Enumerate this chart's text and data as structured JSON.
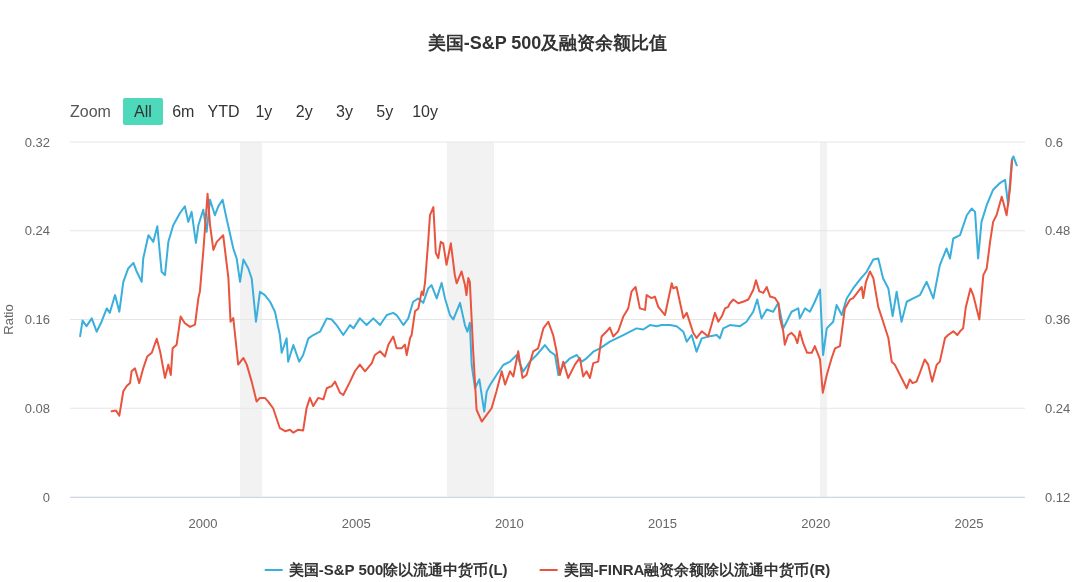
{
  "chart_data": {
    "type": "line",
    "title": "美国-S&P 500及融资余额比值",
    "ylabel": "Ratio",
    "annotations": [
      "Zoom",
      "All",
      "6m",
      "YTD",
      "1y",
      "2y",
      "3y",
      "5y",
      "10y"
    ],
    "xlim": [
      1995.66,
      2026.83
    ],
    "xticks": [
      2000,
      2005,
      2010,
      2015,
      2020,
      2025
    ],
    "ylim": [
      0,
      0.32
    ],
    "yticks": [
      0,
      0.08,
      0.16,
      0.24,
      0.32
    ],
    "y2lim": [
      0.12,
      0.6
    ],
    "y2ticks": [
      0.12,
      0.24,
      0.36,
      0.48,
      0.6
    ],
    "grid": "y",
    "legend": "bottom",
    "bands": [
      {
        "axis": "x",
        "from": 2001.21,
        "to": 2001.93,
        "color": "#f2f2f2"
      },
      {
        "axis": "x",
        "from": 2007.96,
        "to": 2009.5,
        "color": "#f2f2f2"
      },
      {
        "axis": "x",
        "from": 2020.14,
        "to": 2020.37,
        "color": "#f2f2f2"
      }
    ],
    "series": [
      {
        "name": "美国-S&P 500除以流通中货币(L)",
        "color": "#3aafdc",
        "axis": "y",
        "x": [
          1995.99,
          1996.07,
          1996.2,
          1996.37,
          1996.53,
          1996.69,
          1996.86,
          1996.96,
          1997.13,
          1997.27,
          1997.4,
          1997.56,
          1997.73,
          1997.84,
          1998.0,
          1998.05,
          1998.22,
          1998.38,
          1998.51,
          1998.65,
          1998.76,
          1998.87,
          1999.03,
          1999.25,
          1999.41,
          1999.52,
          1999.63,
          1999.77,
          1999.85,
          2000.01,
          2000.12,
          2000.23,
          2000.39,
          2000.5,
          2000.64,
          2000.77,
          2000.99,
          2001.1,
          2001.21,
          2001.32,
          2001.48,
          2001.59,
          2001.73,
          2001.86,
          2002.02,
          2002.19,
          2002.35,
          2002.51,
          2002.57,
          2002.73,
          2002.78,
          2002.95,
          2003.14,
          2003.27,
          2003.44,
          2003.6,
          2003.82,
          2004.04,
          2004.2,
          2004.36,
          2004.58,
          2004.8,
          2004.91,
          2005.12,
          2005.34,
          2005.56,
          2005.78,
          2006.0,
          2006.21,
          2006.32,
          2006.54,
          2006.7,
          2006.86,
          2007.03,
          2007.19,
          2007.35,
          2007.46,
          2007.63,
          2007.79,
          2007.9,
          2008.06,
          2008.17,
          2008.39,
          2008.55,
          2008.63,
          2008.71,
          2008.77,
          2008.88,
          2009.02,
          2009.18,
          2009.26,
          2009.37,
          2009.58,
          2009.8,
          2010.02,
          2010.24,
          2010.45,
          2010.67,
          2010.89,
          2011.16,
          2011.33,
          2011.49,
          2011.6,
          2011.76,
          2011.98,
          2012.2,
          2012.36,
          2012.52,
          2012.74,
          2012.96,
          2013.28,
          2013.5,
          2013.72,
          2013.94,
          2014.15,
          2014.37,
          2014.59,
          2014.81,
          2014.97,
          2015.24,
          2015.46,
          2015.68,
          2015.79,
          2015.95,
          2016.11,
          2016.28,
          2016.55,
          2016.77,
          2016.87,
          2016.98,
          2017.2,
          2017.53,
          2017.74,
          2017.96,
          2018.09,
          2018.23,
          2018.4,
          2018.61,
          2018.78,
          2018.94,
          2019.05,
          2019.21,
          2019.43,
          2019.48,
          2019.65,
          2019.81,
          2019.97,
          2020.14,
          2020.24,
          2020.36,
          2020.57,
          2020.68,
          2020.85,
          2021.01,
          2021.22,
          2021.44,
          2021.66,
          2021.88,
          2022.04,
          2022.2,
          2022.37,
          2022.51,
          2022.64,
          2022.8,
          2022.97,
          2023.18,
          2023.4,
          2023.62,
          2023.84,
          2024.05,
          2024.27,
          2024.38,
          2024.49,
          2024.71,
          2024.93,
          2025.09,
          2025.2,
          2025.3,
          2025.41,
          2025.58,
          2025.79,
          2026.01,
          2026.18,
          2026.28,
          2026.4,
          2026.45,
          2026.56
        ],
        "values": [
          0.145,
          0.159,
          0.154,
          0.161,
          0.149,
          0.158,
          0.17,
          0.166,
          0.182,
          0.167,
          0.194,
          0.206,
          0.211,
          0.203,
          0.194,
          0.215,
          0.236,
          0.23,
          0.244,
          0.203,
          0.2,
          0.23,
          0.245,
          0.256,
          0.262,
          0.248,
          0.257,
          0.229,
          0.245,
          0.259,
          0.239,
          0.268,
          0.254,
          0.262,
          0.268,
          0.251,
          0.224,
          0.215,
          0.194,
          0.214,
          0.206,
          0.197,
          0.158,
          0.185,
          0.182,
          0.176,
          0.167,
          0.146,
          0.13,
          0.143,
          0.122,
          0.137,
          0.122,
          0.128,
          0.143,
          0.146,
          0.149,
          0.161,
          0.16,
          0.155,
          0.146,
          0.155,
          0.152,
          0.161,
          0.155,
          0.161,
          0.155,
          0.164,
          0.166,
          0.164,
          0.155,
          0.161,
          0.176,
          0.179,
          0.175,
          0.188,
          0.191,
          0.179,
          0.193,
          0.179,
          0.164,
          0.16,
          0.175,
          0.155,
          0.149,
          0.157,
          0.119,
          0.098,
          0.106,
          0.077,
          0.095,
          0.101,
          0.11,
          0.119,
          0.122,
          0.128,
          0.113,
          0.122,
          0.128,
          0.137,
          0.131,
          0.128,
          0.11,
          0.119,
          0.125,
          0.128,
          0.122,
          0.125,
          0.131,
          0.134,
          0.14,
          0.143,
          0.146,
          0.149,
          0.152,
          0.151,
          0.155,
          0.154,
          0.155,
          0.155,
          0.154,
          0.149,
          0.14,
          0.146,
          0.131,
          0.143,
          0.145,
          0.146,
          0.143,
          0.152,
          0.155,
          0.154,
          0.158,
          0.167,
          0.178,
          0.161,
          0.169,
          0.167,
          0.175,
          0.152,
          0.158,
          0.167,
          0.17,
          0.161,
          0.17,
          0.167,
          0.176,
          0.187,
          0.128,
          0.152,
          0.158,
          0.173,
          0.164,
          0.179,
          0.188,
          0.196,
          0.203,
          0.214,
          0.215,
          0.197,
          0.188,
          0.163,
          0.185,
          0.158,
          0.176,
          0.179,
          0.182,
          0.194,
          0.179,
          0.209,
          0.224,
          0.215,
          0.233,
          0.236,
          0.254,
          0.26,
          0.257,
          0.215,
          0.248,
          0.263,
          0.277,
          0.283,
          0.286,
          0.263,
          0.304,
          0.307,
          0.299
        ]
      },
      {
        "name": "美国-FINRA融资余额除以流通中货币(R)",
        "color": "#e9543f",
        "axis": "y2",
        "x": [
          1997.02,
          1997.16,
          1997.27,
          1997.4,
          1997.51,
          1997.62,
          1997.67,
          1997.78,
          1997.92,
          1998.05,
          1998.18,
          1998.33,
          1998.49,
          1998.6,
          1998.76,
          1998.87,
          1998.95,
          1999.01,
          1999.14,
          1999.27,
          1999.41,
          1999.58,
          1999.74,
          1999.85,
          1999.9,
          2000.01,
          2000.15,
          2000.23,
          2000.34,
          2000.45,
          2000.66,
          2000.83,
          2000.9,
          2000.99,
          2001.15,
          2001.32,
          2001.43,
          2001.59,
          2001.75,
          2001.86,
          2002.02,
          2002.13,
          2002.29,
          2002.51,
          2002.68,
          2002.84,
          2002.95,
          2003.11,
          2003.27,
          2003.38,
          2003.49,
          2003.6,
          2003.76,
          2003.93,
          2004.04,
          2004.2,
          2004.31,
          2004.47,
          2004.58,
          2004.8,
          2004.96,
          2005.12,
          2005.29,
          2005.51,
          2005.61,
          2005.78,
          2005.94,
          2006.05,
          2006.21,
          2006.32,
          2006.48,
          2006.59,
          2006.65,
          2006.76,
          2006.81,
          2006.92,
          2007.03,
          2007.14,
          2007.19,
          2007.25,
          2007.35,
          2007.41,
          2007.52,
          2007.6,
          2007.68,
          2007.76,
          2007.84,
          2007.95,
          2008.09,
          2008.22,
          2008.28,
          2008.44,
          2008.55,
          2008.6,
          2008.66,
          2008.71,
          2008.82,
          2008.93,
          2009.1,
          2009.26,
          2009.42,
          2009.58,
          2009.75,
          2009.86,
          2010.02,
          2010.13,
          2010.29,
          2010.43,
          2010.56,
          2010.78,
          2010.94,
          2011.11,
          2011.27,
          2011.43,
          2011.54,
          2011.65,
          2011.76,
          2011.92,
          2012.14,
          2012.3,
          2012.41,
          2012.52,
          2012.63,
          2012.74,
          2012.9,
          2013.01,
          2013.18,
          2013.28,
          2013.39,
          2013.55,
          2013.72,
          2013.88,
          2013.99,
          2014.12,
          2014.26,
          2014.43,
          2014.48,
          2014.64,
          2014.75,
          2014.86,
          2015.08,
          2015.3,
          2015.35,
          2015.46,
          2015.68,
          2015.79,
          2016.0,
          2016.11,
          2016.28,
          2016.49,
          2016.6,
          2016.71,
          2016.82,
          2016.93,
          2017.04,
          2017.14,
          2017.2,
          2017.31,
          2017.47,
          2017.63,
          2017.8,
          2017.96,
          2018.05,
          2018.16,
          2018.29,
          2018.4,
          2018.51,
          2018.67,
          2018.78,
          2018.83,
          2018.94,
          2018.99,
          2019.1,
          2019.21,
          2019.32,
          2019.4,
          2019.48,
          2019.59,
          2019.72,
          2019.87,
          2019.97,
          2020.14,
          2020.23,
          2020.36,
          2020.52,
          2020.63,
          2020.79,
          2020.95,
          2021.12,
          2021.22,
          2021.39,
          2021.5,
          2021.55,
          2021.64,
          2021.77,
          2021.88,
          2022.04,
          2022.2,
          2022.37,
          2022.48,
          2022.58,
          2022.8,
          2022.97,
          2023.07,
          2023.16,
          2023.29,
          2023.4,
          2023.56,
          2023.67,
          2023.8,
          2023.95,
          2024.05,
          2024.22,
          2024.32,
          2024.49,
          2024.62,
          2024.71,
          2024.81,
          2024.9,
          2025.05,
          2025.14,
          2025.25,
          2025.34,
          2025.47,
          2025.58,
          2025.69,
          2025.79,
          2025.9,
          2026.07,
          2026.12,
          2026.23,
          2026.34,
          2026.41
        ],
        "values": [
          0.236,
          0.237,
          0.23,
          0.263,
          0.27,
          0.274,
          0.29,
          0.294,
          0.274,
          0.294,
          0.31,
          0.315,
          0.334,
          0.317,
          0.281,
          0.299,
          0.285,
          0.321,
          0.326,
          0.364,
          0.355,
          0.35,
          0.353,
          0.389,
          0.398,
          0.452,
          0.53,
          0.488,
          0.454,
          0.465,
          0.474,
          0.416,
          0.357,
          0.362,
          0.299,
          0.308,
          0.299,
          0.276,
          0.249,
          0.254,
          0.254,
          0.249,
          0.24,
          0.213,
          0.209,
          0.211,
          0.207,
          0.211,
          0.21,
          0.24,
          0.254,
          0.243,
          0.254,
          0.252,
          0.267,
          0.27,
          0.276,
          0.261,
          0.258,
          0.276,
          0.29,
          0.299,
          0.29,
          0.301,
          0.312,
          0.317,
          0.31,
          0.326,
          0.337,
          0.321,
          0.321,
          0.326,
          0.312,
          0.335,
          0.339,
          0.371,
          0.375,
          0.398,
          0.393,
          0.411,
          0.465,
          0.501,
          0.512,
          0.45,
          0.443,
          0.465,
          0.463,
          0.434,
          0.463,
          0.42,
          0.409,
          0.425,
          0.407,
          0.393,
          0.416,
          0.411,
          0.317,
          0.238,
          0.222,
          0.231,
          0.24,
          0.263,
          0.29,
          0.272,
          0.29,
          0.283,
          0.317,
          0.281,
          0.285,
          0.317,
          0.321,
          0.348,
          0.357,
          0.339,
          0.317,
          0.285,
          0.303,
          0.281,
          0.299,
          0.308,
          0.283,
          0.29,
          0.281,
          0.301,
          0.303,
          0.337,
          0.344,
          0.349,
          0.337,
          0.344,
          0.364,
          0.375,
          0.398,
          0.404,
          0.375,
          0.373,
          0.393,
          0.389,
          0.391,
          0.377,
          0.366,
          0.409,
          0.402,
          0.404,
          0.362,
          0.369,
          0.342,
          0.335,
          0.344,
          0.337,
          0.353,
          0.369,
          0.357,
          0.364,
          0.375,
          0.377,
          0.382,
          0.387,
          0.382,
          0.384,
          0.387,
          0.4,
          0.413,
          0.398,
          0.396,
          0.404,
          0.391,
          0.389,
          0.382,
          0.362,
          0.344,
          0.326,
          0.339,
          0.342,
          0.337,
          0.328,
          0.344,
          0.328,
          0.315,
          0.315,
          0.324,
          0.306,
          0.261,
          0.285,
          0.308,
          0.321,
          0.324,
          0.375,
          0.387,
          0.389,
          0.398,
          0.404,
          0.389,
          0.411,
          0.425,
          0.416,
          0.377,
          0.357,
          0.335,
          0.303,
          0.299,
          0.281,
          0.267,
          0.279,
          0.274,
          0.276,
          0.288,
          0.306,
          0.299,
          0.276,
          0.299,
          0.303,
          0.335,
          0.339,
          0.344,
          0.339,
          0.344,
          0.348,
          0.377,
          0.402,
          0.393,
          0.375,
          0.36,
          0.42,
          0.429,
          0.465,
          0.492,
          0.501,
          0.526,
          0.519,
          0.501,
          0.537,
          0.575
        ]
      }
    ]
  }
}
